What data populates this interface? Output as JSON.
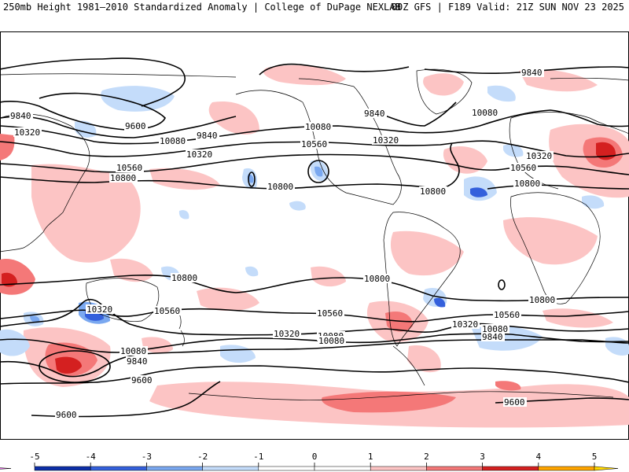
{
  "header": {
    "left_title": "250mb Height 1981–2010 Standardized Anomaly | College of DuPage NEXLAB",
    "right_title": "00Z GFS | F189 Valid: 21Z SUN NOV 23 2025"
  },
  "map": {
    "projection": "Cylindrical equidistant, Pacific-centered",
    "contour_labels": [
      {
        "text": "9840"
      },
      {
        "text": "10320"
      },
      {
        "text": "9600"
      },
      {
        "text": "9840"
      },
      {
        "text": "10080"
      },
      {
        "text": "10560"
      },
      {
        "text": "10800"
      },
      {
        "text": "10320"
      },
      {
        "text": "10800"
      },
      {
        "text": "10560"
      },
      {
        "text": "10080"
      },
      {
        "text": "10320"
      },
      {
        "text": "9840"
      },
      {
        "text": "9840"
      },
      {
        "text": "10080"
      },
      {
        "text": "10320"
      },
      {
        "text": "10560"
      },
      {
        "text": "10800"
      },
      {
        "text": "10800"
      },
      {
        "text": "10800"
      },
      {
        "text": "10560"
      },
      {
        "text": "10320"
      },
      {
        "text": "10080"
      },
      {
        "text": "10800"
      },
      {
        "text": "10560"
      },
      {
        "text": "10320"
      },
      {
        "text": "10080"
      },
      {
        "text": "10080"
      },
      {
        "text": "10560"
      },
      {
        "text": "10320"
      },
      {
        "text": "10080"
      },
      {
        "text": "9840"
      },
      {
        "text": "9600"
      },
      {
        "text": "9600"
      },
      {
        "text": "9600"
      },
      {
        "text": "10800"
      },
      {
        "text": "9840"
      }
    ]
  },
  "colorbar": {
    "tick_labels": [
      "-5",
      "-4",
      "-3",
      "-2",
      "-1",
      "0",
      "1",
      "2",
      "3",
      "4",
      "5"
    ],
    "colors": [
      "#9a00c8",
      "#0d2fa8",
      "#3460dc",
      "#7aa8f0",
      "#c4dcfa",
      "#ffffff",
      "#ffffff",
      "#fcc4c4",
      "#f47878",
      "#d42020",
      "#ffa500"
    ],
    "min_color": "#f070f0",
    "max_color": "#ffd700"
  },
  "colors": {
    "contour": "#000000",
    "coastline": "#000000"
  }
}
